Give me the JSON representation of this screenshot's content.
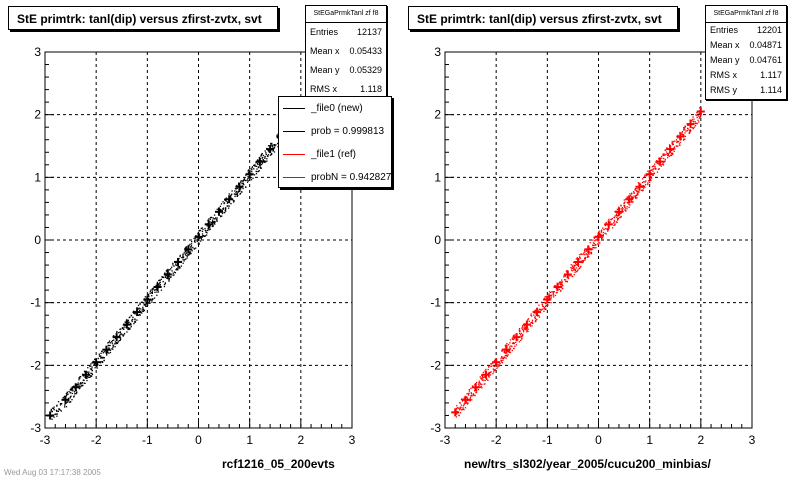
{
  "chart_data": [
    {
      "type": "scatter",
      "title": "StE primtrk: tanl(dip) versus zfirst-zvtx, svt",
      "xlabel": "rcf1216_05_200evts",
      "ylabel": "",
      "xlim": [
        -3,
        3
      ],
      "ylim": [
        -3,
        3
      ],
      "x_ticks": [
        "-3",
        "-2",
        "-1",
        "0",
        "1",
        "2",
        "3"
      ],
      "y_ticks": [
        "-3",
        "-2",
        "-1",
        "0",
        "1",
        "2",
        "3"
      ],
      "grid": true,
      "series": [
        {
          "color": "#000000",
          "x": [
            -2.9,
            -2.6,
            -2.4,
            -2.2,
            -2.0,
            -1.8,
            -1.6,
            -1.4,
            -1.2,
            -1.0,
            -0.8,
            -0.6,
            -0.4,
            -0.2,
            0.0,
            0.2,
            0.4,
            0.6,
            0.8,
            1.0,
            1.2,
            1.4,
            1.6
          ],
          "y": [
            -2.8,
            -2.55,
            -2.35,
            -2.15,
            -1.95,
            -1.75,
            -1.55,
            -1.35,
            -1.15,
            -0.95,
            -0.75,
            -0.55,
            -0.35,
            -0.15,
            0.05,
            0.25,
            0.45,
            0.65,
            0.85,
            1.05,
            1.25,
            1.45,
            1.65
          ]
        }
      ],
      "stats": {
        "name": "StEGaPrmkTanl zf f8",
        "rows": [
          {
            "label": "Entries",
            "value": "12137"
          },
          {
            "label": "Mean x",
            "value": "0.05433"
          },
          {
            "label": "Mean y",
            "value": "0.05329"
          },
          {
            "label": "RMS x",
            "value": "1.118"
          }
        ]
      },
      "legend": {
        "entries": [
          {
            "label": "_file0 (new)",
            "color": "#000000"
          },
          {
            "label": "prob = 0.999813",
            "color": "#000000"
          },
          {
            "label": "_file1 (ref)",
            "color": "#ff0000"
          },
          {
            "label": "probN = 0.942827",
            "color": "#ff0000"
          }
        ]
      }
    },
    {
      "type": "scatter",
      "title": "StE primtrk: tanl(dip) versus zfirst-zvtx, svt",
      "xlabel": "new/trs_sl302/year_2005/cucu200_minbias/",
      "ylabel": "",
      "xlim": [
        -3,
        3
      ],
      "ylim": [
        -3,
        3
      ],
      "x_ticks": [
        "-3",
        "-2",
        "-1",
        "0",
        "1",
        "2",
        "3"
      ],
      "y_ticks": [
        "-3",
        "-2",
        "-1",
        "0",
        "1",
        "2",
        "3"
      ],
      "grid": true,
      "series": [
        {
          "color": "#ff0000",
          "x": [
            -2.8,
            -2.6,
            -2.4,
            -2.2,
            -2.0,
            -1.8,
            -1.6,
            -1.4,
            -1.2,
            -1.0,
            -0.8,
            -0.6,
            -0.4,
            -0.2,
            0.0,
            0.2,
            0.4,
            0.6,
            0.8,
            1.0,
            1.2,
            1.4,
            1.6,
            1.8,
            2.0
          ],
          "y": [
            -2.75,
            -2.55,
            -2.35,
            -2.15,
            -1.95,
            -1.75,
            -1.55,
            -1.35,
            -1.15,
            -0.95,
            -0.75,
            -0.55,
            -0.35,
            -0.15,
            0.05,
            0.25,
            0.45,
            0.65,
            0.85,
            1.05,
            1.25,
            1.45,
            1.65,
            1.85,
            2.05
          ]
        }
      ],
      "stats": {
        "name": "StEGaPrmkTanl zf f8",
        "rows": [
          {
            "label": "Entries",
            "value": "12201"
          },
          {
            "label": "Mean x",
            "value": "0.04871"
          },
          {
            "label": "Mean y",
            "value": "0.04761"
          },
          {
            "label": "RMS x",
            "value": "1.117"
          },
          {
            "label": "RMS y",
            "value": "1.114"
          }
        ]
      }
    }
  ],
  "footer": "Wed Aug 03 17:17:38 2005"
}
